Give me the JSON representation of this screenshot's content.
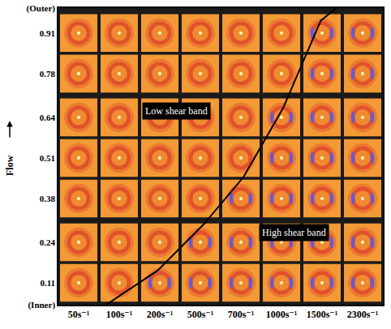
{
  "chart_data": {
    "type": "line",
    "xlim": [
      -0.5,
      7.5
    ],
    "xticks": [
      {
        "value": 0,
        "label": "50s⁻¹"
      },
      {
        "value": 1,
        "label": "100s⁻¹"
      },
      {
        "value": 2,
        "label": "200s⁻¹"
      },
      {
        "value": 3,
        "label": "500s⁻¹"
      },
      {
        "value": 4,
        "label": "700s⁻¹"
      },
      {
        "value": 5,
        "label": "1000s⁻¹"
      },
      {
        "value": 6,
        "label": "1500s⁻¹"
      },
      {
        "value": 7,
        "label": "2300s⁻¹"
      }
    ],
    "ylim": [
      0.04,
      0.99
    ],
    "yticks": [
      {
        "value": 0.04,
        "label": "(Inner)"
      },
      0.11,
      0.24,
      0.38,
      0.51,
      0.64,
      0.78,
      0.91,
      {
        "value": 0.99,
        "label": "(Outer)"
      }
    ],
    "ylabel": "Flow",
    "x": [
      0.68,
      1.95,
      3.1,
      4.07,
      5.04,
      5.97,
      6.35
    ],
    "values": [
      0.04,
      0.15,
      0.3,
      0.45,
      0.67,
      0.95,
      0.99
    ],
    "color": "#000000",
    "annotations": [
      {
        "text": "Low shear band",
        "x": 2.4,
        "y": 0.66
      },
      {
        "text": "High shear band",
        "x": 5.3,
        "y": 0.27
      }
    ],
    "grid": false
  }
}
